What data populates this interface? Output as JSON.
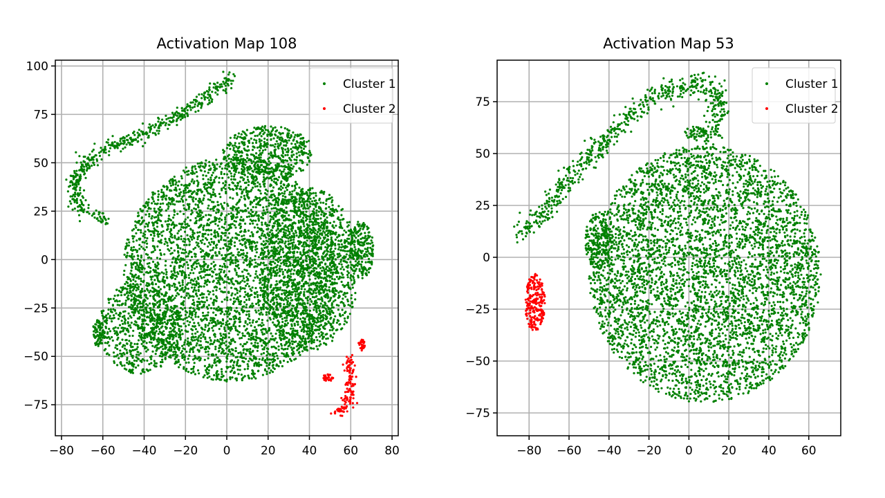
{
  "chart_data": [
    {
      "type": "scatter",
      "title": "Activation Map 108",
      "xlim": [
        -83,
        83
      ],
      "ylim": [
        -91,
        103
      ],
      "xticks": [
        -80,
        -60,
        -40,
        -20,
        0,
        20,
        40,
        60,
        80
      ],
      "yticks": [
        -75,
        -50,
        -25,
        0,
        25,
        50,
        75,
        100
      ],
      "tick_labels_x": [
        "−80",
        "−60",
        "−40",
        "−20",
        "0",
        "20",
        "40",
        "60",
        "80"
      ],
      "tick_labels_y": [
        "−75",
        "−50",
        "−25",
        "0",
        "25",
        "50",
        "75",
        "100"
      ],
      "grid": true,
      "legend_position": "top-right",
      "series": [
        {
          "name": "Cluster 1",
          "color": "#008000",
          "regions": [
            {
              "shape": "arc",
              "points": [
                [
                  -58,
                  20
                ],
                [
                  -72,
                  28
                ],
                [
                  -74,
                  40
                ],
                [
                  -65,
                  53
                ],
                [
                  -52,
                  60
                ],
                [
                  -38,
                  66
                ],
                [
                  -25,
                  73
                ],
                [
                  -12,
                  82
                ],
                [
                  2,
                  94
                ]
              ],
              "spread": 1.8,
              "count": 520
            },
            {
              "shape": "ellipse",
              "cx": 2,
              "cy": -5,
              "rx": 52,
              "ry": 58,
              "count": 4200
            },
            {
              "shape": "ellipse",
              "cx": 40,
              "cy": -5,
              "rx": 24,
              "ry": 42,
              "count": 1300
            },
            {
              "shape": "ellipse",
              "cx": -42,
              "cy": -35,
              "rx": 20,
              "ry": 24,
              "count": 600
            },
            {
              "shape": "ellipse",
              "cx": 20,
              "cy": 55,
              "rx": 22,
              "ry": 14,
              "count": 520
            },
            {
              "shape": "ellipse",
              "cx": 65,
              "cy": 5,
              "rx": 6,
              "ry": 15,
              "count": 220
            },
            {
              "shape": "ellipse",
              "cx": -62,
              "cy": -38,
              "rx": 3,
              "ry": 7,
              "count": 80
            }
          ]
        },
        {
          "name": "Cluster 2",
          "color": "#ff0000",
          "regions": [
            {
              "shape": "arc",
              "points": [
                [
                  53,
                  -80
                ],
                [
                  58,
                  -76
                ],
                [
                  60,
                  -68
                ],
                [
                  60,
                  -58
                ],
                [
                  59,
                  -50
                ]
              ],
              "spread": 1.4,
              "count": 130
            },
            {
              "shape": "ellipse",
              "cx": 65,
              "cy": -44,
              "rx": 2,
              "ry": 3,
              "count": 30
            },
            {
              "shape": "ellipse",
              "cx": 49,
              "cy": -61,
              "rx": 2.5,
              "ry": 2,
              "count": 30
            }
          ]
        }
      ]
    },
    {
      "type": "scatter",
      "title": "Activation Map 53",
      "xlim": [
        -96,
        76
      ],
      "ylim": [
        -86,
        95
      ],
      "xticks": [
        -80,
        -60,
        -40,
        -20,
        0,
        20,
        40,
        60
      ],
      "yticks": [
        -75,
        -50,
        -25,
        0,
        25,
        50,
        75
      ],
      "tick_labels_x": [
        "−80",
        "−60",
        "−40",
        "−20",
        "0",
        "20",
        "40",
        "60"
      ],
      "tick_labels_y": [
        "−75",
        "−50",
        "−25",
        "0",
        "25",
        "50",
        "75"
      ],
      "grid": true,
      "legend_position": "top-right",
      "series": [
        {
          "name": "Cluster 1",
          "color": "#008000",
          "regions": [
            {
              "shape": "arc",
              "points": [
                [
                  -85,
                  10
                ],
                [
                  -72,
                  22
                ],
                [
                  -60,
                  38
                ],
                [
                  -45,
                  52
                ],
                [
                  -30,
                  68
                ],
                [
                  -12,
                  80
                ],
                [
                  5,
                  84
                ],
                [
                  15,
                  78
                ],
                [
                  14,
                  65
                ],
                [
                  10,
                  55
                ]
              ],
              "spread": 2.5,
              "count": 650
            },
            {
              "shape": "ellipse",
              "cx": 8,
              "cy": -8,
              "rx": 58,
              "ry": 62,
              "count": 4700
            },
            {
              "shape": "ellipse",
              "cx": -45,
              "cy": 8,
              "rx": 7,
              "ry": 14,
              "count": 200
            },
            {
              "shape": "ellipse",
              "cx": 3,
              "cy": 60,
              "rx": 6,
              "ry": 3,
              "count": 50
            }
          ]
        },
        {
          "name": "Cluster 2",
          "color": "#ff0000",
          "regions": [
            {
              "shape": "ellipse",
              "cx": -77,
              "cy": -22,
              "rx": 5,
              "ry": 14,
              "count": 230
            }
          ]
        }
      ]
    }
  ]
}
